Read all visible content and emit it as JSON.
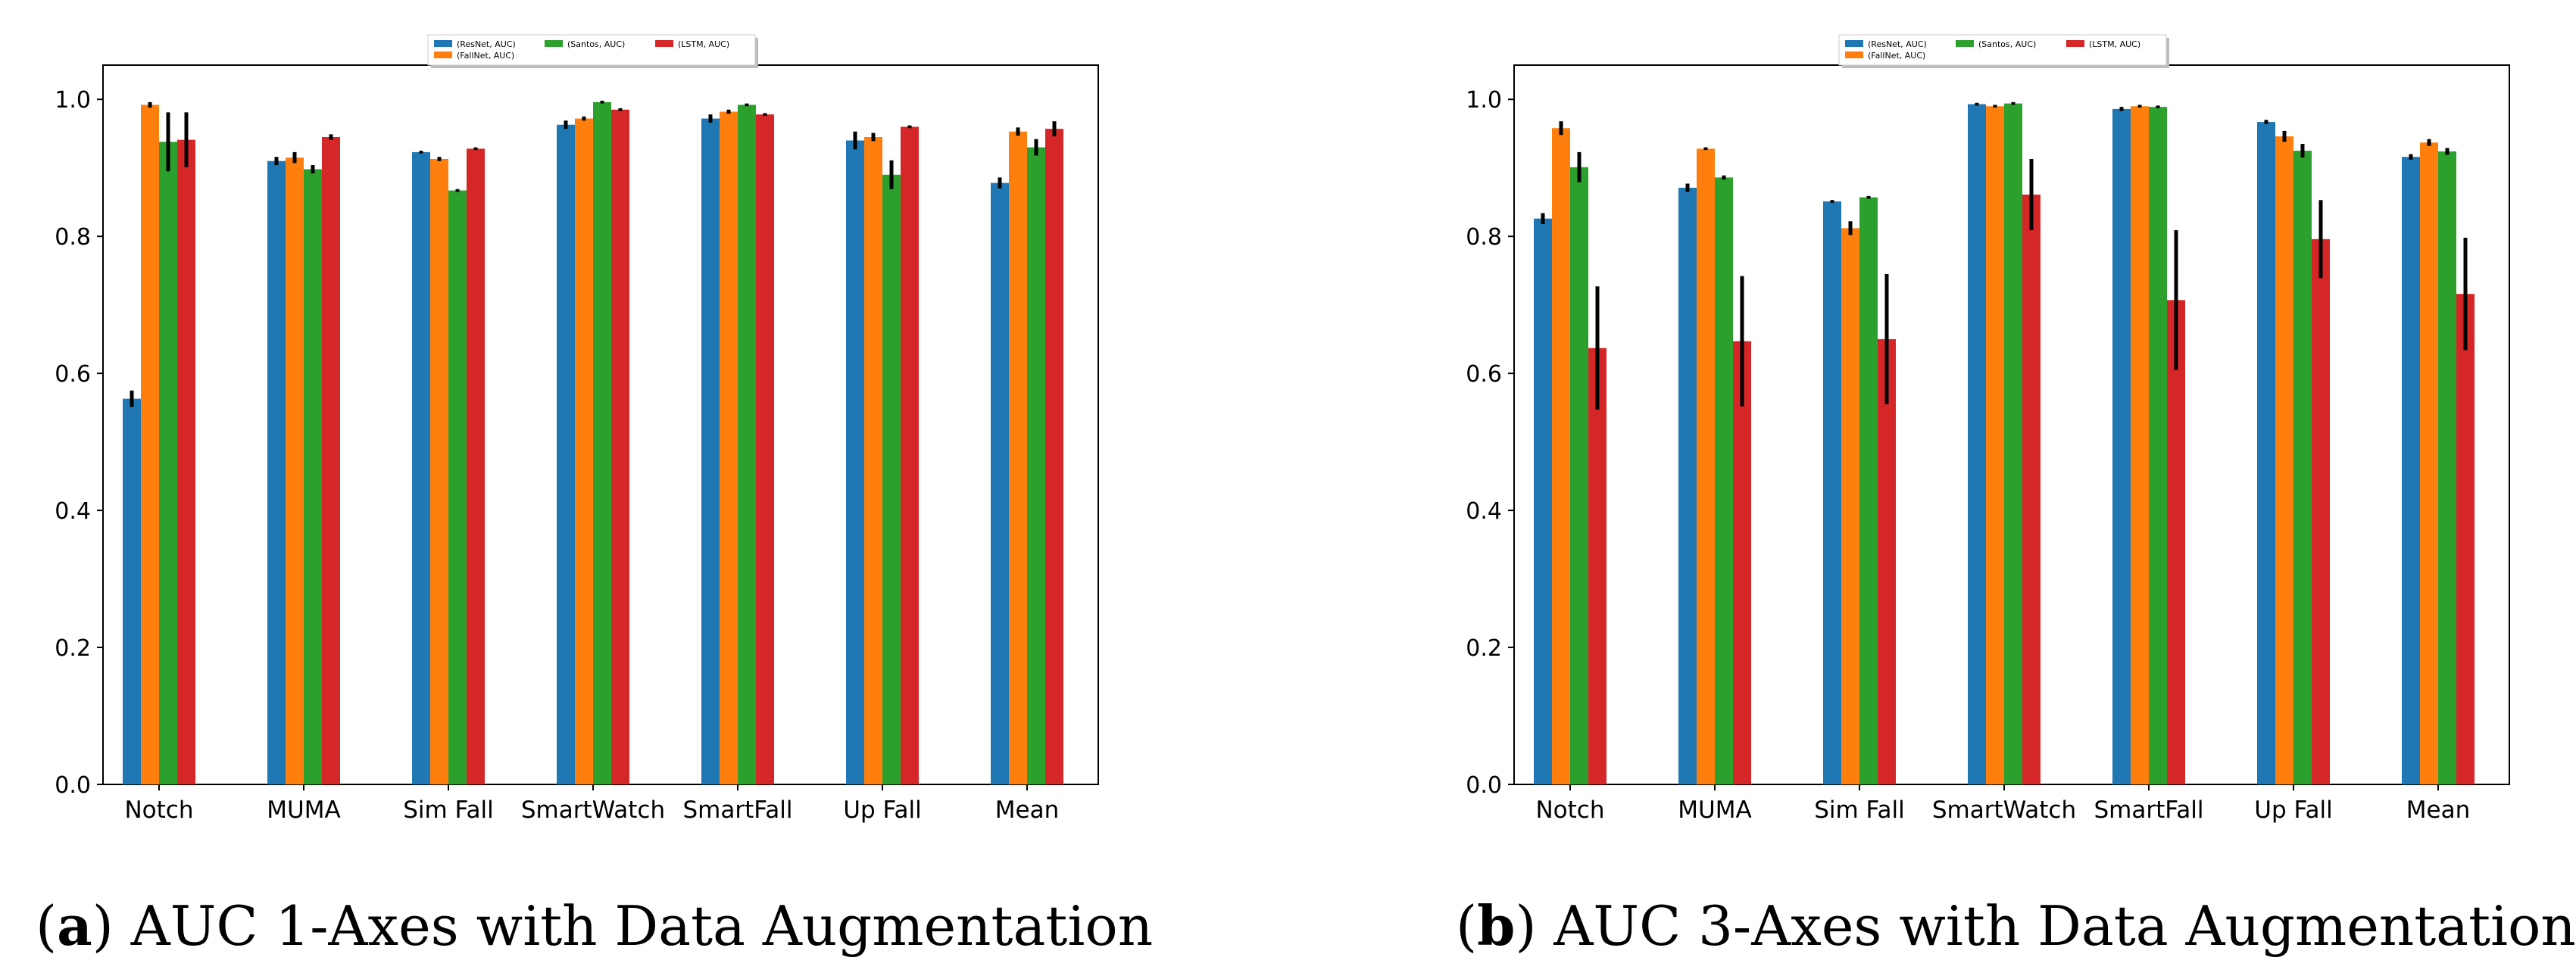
{
  "colors": {
    "ResNet": "#1f77b4",
    "FallNet": "#ff7f0e",
    "Santos": "#2ca02c",
    "LSTM": "#d62728",
    "errorbar": "#000000"
  },
  "chart_data": [
    {
      "type": "bar",
      "title": "",
      "xlabel": "",
      "ylabel": "",
      "ylim": [
        0,
        1.05
      ],
      "yticks": [
        "0.0",
        "0.2",
        "0.4",
        "0.6",
        "0.8",
        "1.0"
      ],
      "legend_position": "top-center",
      "categories": [
        "Notch",
        "MUMA",
        "Sim Fall",
        "SmartWatch",
        "SmartFall",
        "Up Fall",
        "Mean"
      ],
      "series": [
        {
          "name": "(ResNet, AUC)",
          "key": "ResNet",
          "values": [
            0.563,
            0.91,
            0.923,
            0.963,
            0.972,
            0.94,
            0.878
          ],
          "errors": [
            0.012,
            0.006,
            0.002,
            0.006,
            0.006,
            0.013,
            0.008
          ]
        },
        {
          "name": "(FallNet, AUC)",
          "key": "FallNet",
          "values": [
            0.992,
            0.915,
            0.913,
            0.972,
            0.982,
            0.945,
            0.953
          ],
          "errors": [
            0.004,
            0.008,
            0.003,
            0.003,
            0.003,
            0.006,
            0.006
          ]
        },
        {
          "name": "(Santos, AUC)",
          "key": "Santos",
          "values": [
            0.938,
            0.898,
            0.867,
            0.996,
            0.992,
            0.89,
            0.93
          ],
          "errors": [
            0.043,
            0.006,
            0.002,
            0.002,
            0.002,
            0.021,
            0.012
          ]
        },
        {
          "name": "(LSTM, AUC)",
          "key": "LSTM",
          "values": [
            0.941,
            0.945,
            0.928,
            0.985,
            0.978,
            0.96,
            0.957
          ],
          "errors": [
            0.04,
            0.004,
            0.002,
            0.002,
            0.002,
            0.002,
            0.011
          ]
        }
      ]
    },
    {
      "type": "bar",
      "title": "",
      "xlabel": "",
      "ylabel": "",
      "ylim": [
        0,
        1.05
      ],
      "yticks": [
        "0.0",
        "0.2",
        "0.4",
        "0.6",
        "0.8",
        "1.0"
      ],
      "legend_position": "top-center",
      "categories": [
        "Notch",
        "MUMA",
        "Sim Fall",
        "SmartWatch",
        "SmartFall",
        "Up Fall",
        "Mean"
      ],
      "series": [
        {
          "name": "(ResNet, AUC)",
          "key": "ResNet",
          "values": [
            0.826,
            0.871,
            0.851,
            0.993,
            0.986,
            0.967,
            0.916
          ],
          "errors": [
            0.008,
            0.006,
            0.002,
            0.002,
            0.003,
            0.003,
            0.004
          ]
        },
        {
          "name": "(FallNet, AUC)",
          "key": "FallNet",
          "values": [
            0.958,
            0.928,
            0.812,
            0.99,
            0.99,
            0.946,
            0.937
          ],
          "errors": [
            0.01,
            0.002,
            0.01,
            0.002,
            0.002,
            0.008,
            0.005
          ]
        },
        {
          "name": "(Santos, AUC)",
          "key": "Santos",
          "values": [
            0.901,
            0.886,
            0.857,
            0.994,
            0.989,
            0.925,
            0.924
          ],
          "errors": [
            0.022,
            0.003,
            0.002,
            0.002,
            0.002,
            0.01,
            0.005
          ]
        },
        {
          "name": "(LSTM, AUC)",
          "key": "LSTM",
          "values": [
            0.637,
            0.647,
            0.65,
            0.861,
            0.707,
            0.796,
            0.716
          ],
          "errors": [
            0.09,
            0.095,
            0.095,
            0.052,
            0.102,
            0.057,
            0.082
          ]
        }
      ]
    }
  ],
  "captions": [
    {
      "letter": "a",
      "text": "AUC 1-Axes with Data Augmentation"
    },
    {
      "letter": "b",
      "text": "AUC 3-Axes with Data Augmentation"
    }
  ]
}
